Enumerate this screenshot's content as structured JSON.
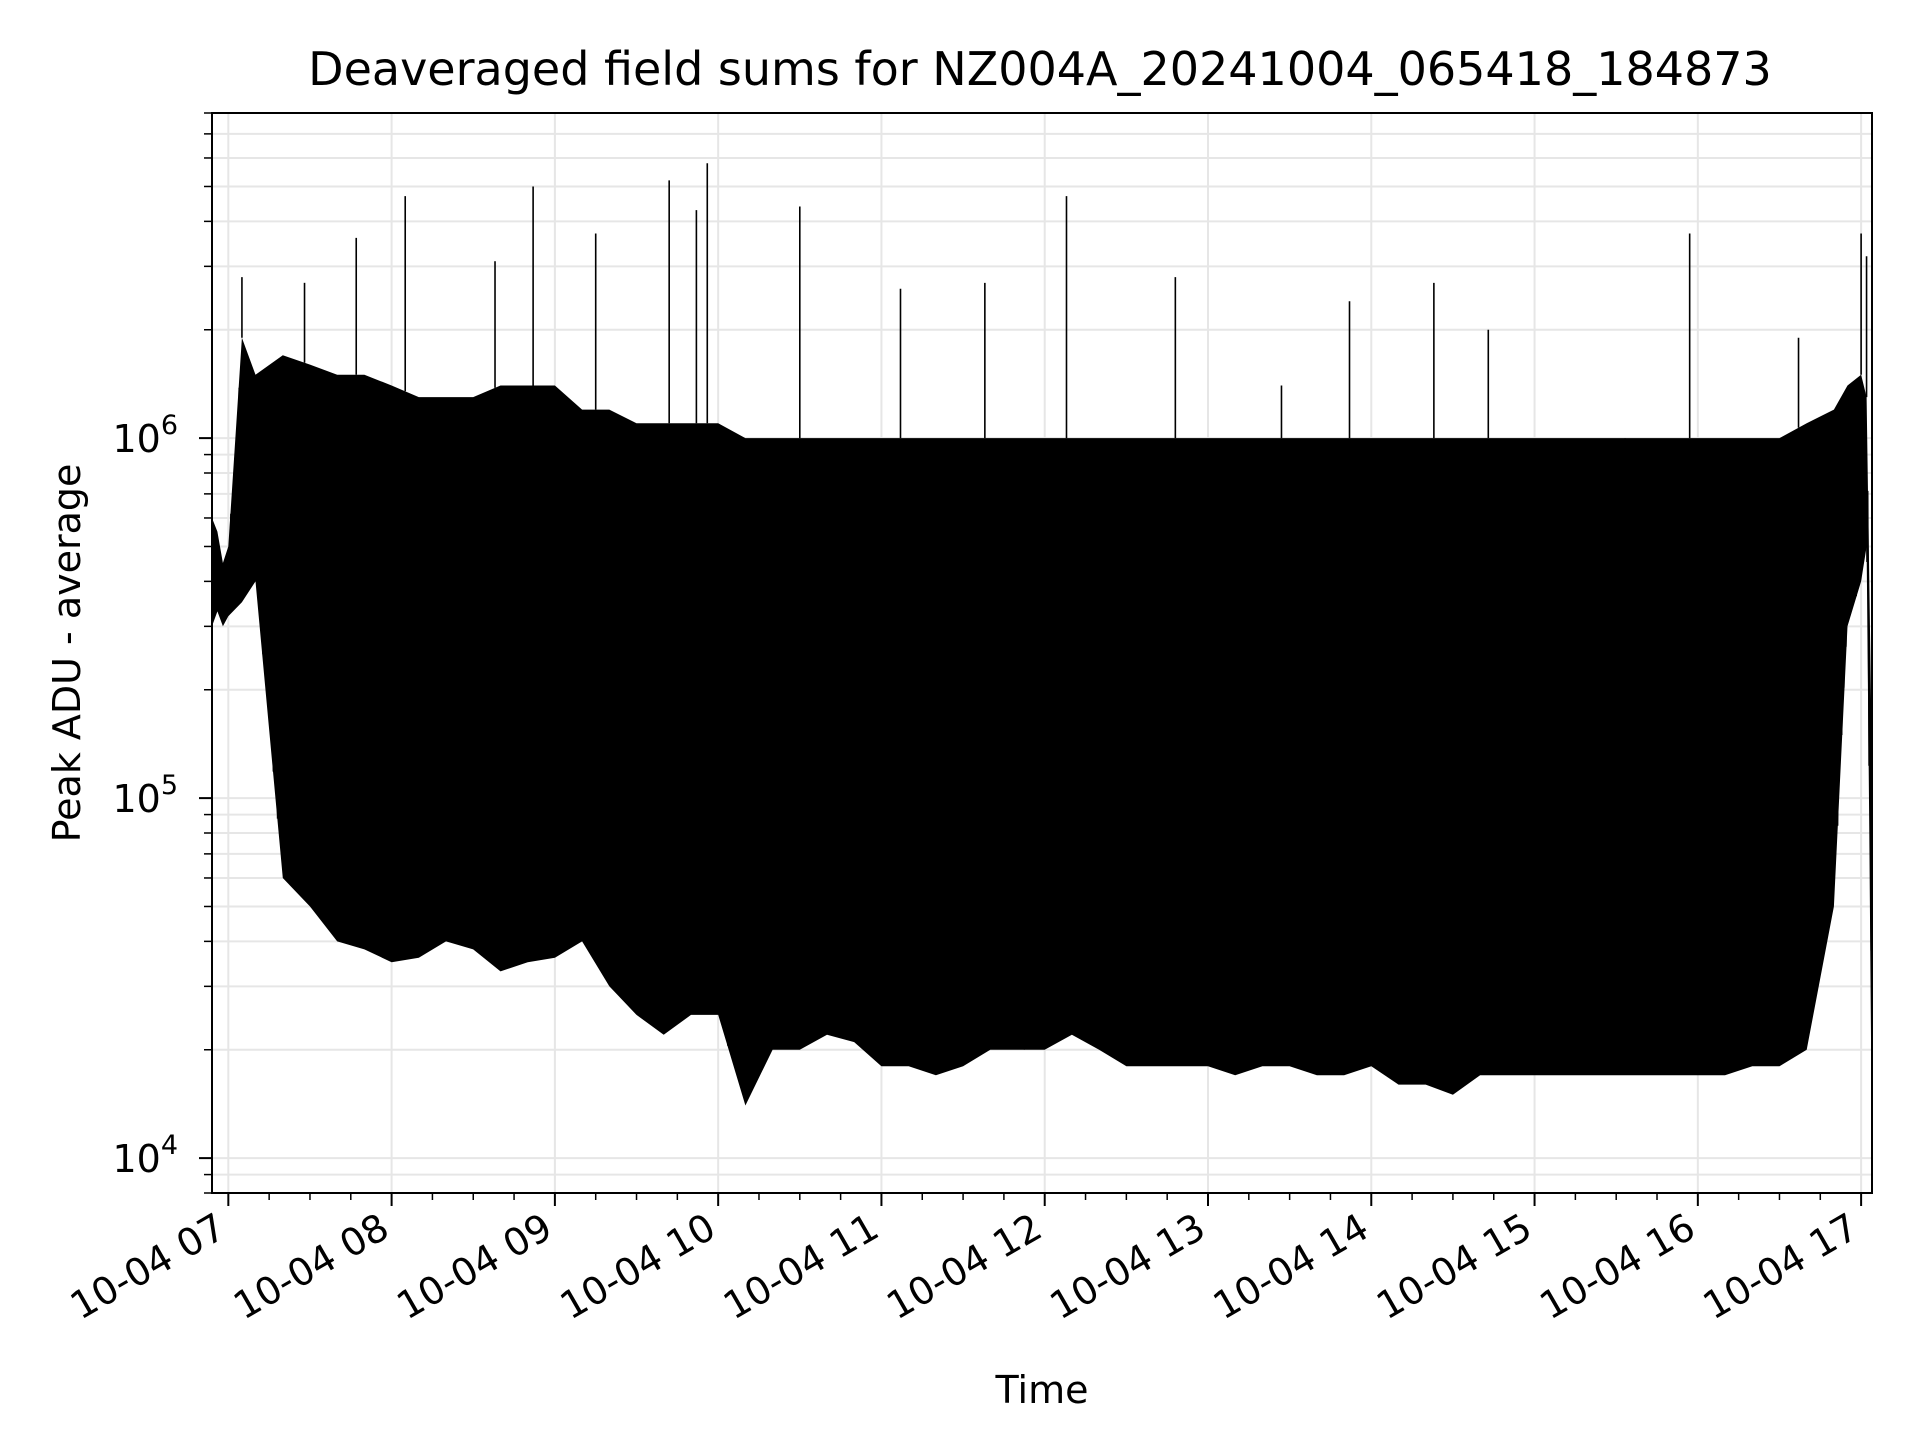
{
  "chart_data": {
    "type": "line",
    "title": "Deaveraged field sums for NZ004A_20241004_065418_184873",
    "xlabel": "Time",
    "ylabel": "Peak ADU - average",
    "yscale": "log",
    "ylim": [
      8000,
      8000000
    ],
    "xlim": [
      "2024-10-04 06:54",
      "2024-10-04 17:04"
    ],
    "xticks": [
      {
        "time": "2024-10-04 07:00",
        "label": "10-04 07"
      },
      {
        "time": "2024-10-04 08:00",
        "label": "10-04 08"
      },
      {
        "time": "2024-10-04 09:00",
        "label": "10-04 09"
      },
      {
        "time": "2024-10-04 10:00",
        "label": "10-04 10"
      },
      {
        "time": "2024-10-04 11:00",
        "label": "10-04 11"
      },
      {
        "time": "2024-10-04 12:00",
        "label": "10-04 12"
      },
      {
        "time": "2024-10-04 13:00",
        "label": "10-04 13"
      },
      {
        "time": "2024-10-04 14:00",
        "label": "10-04 14"
      },
      {
        "time": "2024-10-04 15:00",
        "label": "10-04 15"
      },
      {
        "time": "2024-10-04 16:00",
        "label": "10-04 16"
      },
      {
        "time": "2024-10-04 17:00",
        "label": "10-04 17"
      }
    ],
    "yticks": [
      {
        "value": 10000,
        "base": "10",
        "exp": "4"
      },
      {
        "value": 100000,
        "base": "10",
        "exp": "5"
      },
      {
        "value": 1000000,
        "base": "10",
        "exp": "6"
      }
    ],
    "grid": true,
    "legend": "none",
    "colors": {
      "line": "#000000",
      "grid": "#e6e6e6",
      "axes": "#000000"
    },
    "series": [
      {
        "x": [
          "2024-10-04 06:54",
          "2024-10-04 06:56",
          "2024-10-04 06:58",
          "2024-10-04 07:00",
          "2024-10-04 07:05",
          "2024-10-04 07:10",
          "2024-10-04 07:20",
          "2024-10-04 07:30",
          "2024-10-04 07:40",
          "2024-10-04 07:50",
          "2024-10-04 08:00",
          "2024-10-04 08:10",
          "2024-10-04 08:20",
          "2024-10-04 08:30",
          "2024-10-04 08:40",
          "2024-10-04 08:50",
          "2024-10-04 09:00",
          "2024-10-04 09:10",
          "2024-10-04 09:20",
          "2024-10-04 09:30",
          "2024-10-04 09:40",
          "2024-10-04 09:50",
          "2024-10-04 10:00",
          "2024-10-04 10:10",
          "2024-10-04 10:20",
          "2024-10-04 10:30",
          "2024-10-04 10:40",
          "2024-10-04 10:50",
          "2024-10-04 11:00",
          "2024-10-04 11:10",
          "2024-10-04 11:20",
          "2024-10-04 11:30",
          "2024-10-04 11:40",
          "2024-10-04 11:50",
          "2024-10-04 12:00",
          "2024-10-04 12:10",
          "2024-10-04 12:20",
          "2024-10-04 12:30",
          "2024-10-04 12:40",
          "2024-10-04 12:50",
          "2024-10-04 13:00",
          "2024-10-04 13:10",
          "2024-10-04 13:20",
          "2024-10-04 13:30",
          "2024-10-04 13:40",
          "2024-10-04 13:50",
          "2024-10-04 14:00",
          "2024-10-04 14:10",
          "2024-10-04 14:20",
          "2024-10-04 14:30",
          "2024-10-04 14:40",
          "2024-10-04 14:50",
          "2024-10-04 15:00",
          "2024-10-04 15:10",
          "2024-10-04 15:20",
          "2024-10-04 15:30",
          "2024-10-04 15:40",
          "2024-10-04 15:50",
          "2024-10-04 16:00",
          "2024-10-04 16:10",
          "2024-10-04 16:20",
          "2024-10-04 16:30",
          "2024-10-04 16:40",
          "2024-10-04 16:50",
          "2024-10-04 16:55",
          "2024-10-04 17:00",
          "2024-10-04 17:02",
          "2024-10-04 17:03",
          "2024-10-04 17:04"
        ],
        "upper": [
          600000,
          550000,
          450000,
          500000,
          1900000,
          1500000,
          1700000,
          1600000,
          1500000,
          1500000,
          1400000,
          1300000,
          1300000,
          1300000,
          1400000,
          1400000,
          1400000,
          1200000,
          1200000,
          1100000,
          1100000,
          1100000,
          1100000,
          1000000,
          1000000,
          1000000,
          1000000,
          1000000,
          1000000,
          1000000,
          1000000,
          1000000,
          1000000,
          1000000,
          1000000,
          1000000,
          1000000,
          1000000,
          1000000,
          1000000,
          1000000,
          1000000,
          1000000,
          1000000,
          1000000,
          1000000,
          1000000,
          1000000,
          1000000,
          1000000,
          1000000,
          1000000,
          1000000,
          1000000,
          1000000,
          1000000,
          1000000,
          1000000,
          1000000,
          1000000,
          1000000,
          1000000,
          1100000,
          1200000,
          1400000,
          1500000,
          1300000,
          400000,
          120000
        ],
        "lower": [
          300000,
          330000,
          300000,
          320000,
          350000,
          400000,
          60000,
          50000,
          40000,
          38000,
          35000,
          36000,
          40000,
          38000,
          33000,
          35000,
          36000,
          40000,
          30000,
          25000,
          22000,
          25000,
          25000,
          14000,
          20000,
          20000,
          22000,
          21000,
          18000,
          18000,
          17000,
          18000,
          20000,
          20000,
          20000,
          22000,
          20000,
          18000,
          18000,
          18000,
          18000,
          17000,
          18000,
          18000,
          17000,
          17000,
          18000,
          16000,
          16000,
          15000,
          17000,
          17000,
          17000,
          17000,
          17000,
          17000,
          17000,
          17000,
          17000,
          17000,
          18000,
          18000,
          20000,
          50000,
          300000,
          400000,
          500000,
          80000,
          10000
        ],
        "spikes": [
          {
            "x": "2024-10-04 07:05",
            "y": 2800000
          },
          {
            "x": "2024-10-04 07:28",
            "y": 2700000
          },
          {
            "x": "2024-10-04 07:47",
            "y": 3600000
          },
          {
            "x": "2024-10-04 08:05",
            "y": 4700000
          },
          {
            "x": "2024-10-04 08:38",
            "y": 3100000
          },
          {
            "x": "2024-10-04 08:52",
            "y": 5000000
          },
          {
            "x": "2024-10-04 09:15",
            "y": 3700000
          },
          {
            "x": "2024-10-04 09:42",
            "y": 5200000
          },
          {
            "x": "2024-10-04 09:52",
            "y": 4300000
          },
          {
            "x": "2024-10-04 09:56",
            "y": 5800000
          },
          {
            "x": "2024-10-04 10:30",
            "y": 4400000
          },
          {
            "x": "2024-10-04 11:07",
            "y": 2600000
          },
          {
            "x": "2024-10-04 11:38",
            "y": 2700000
          },
          {
            "x": "2024-10-04 12:08",
            "y": 4700000
          },
          {
            "x": "2024-10-04 12:48",
            "y": 2800000
          },
          {
            "x": "2024-10-04 13:27",
            "y": 1400000
          },
          {
            "x": "2024-10-04 13:52",
            "y": 2400000
          },
          {
            "x": "2024-10-04 14:23",
            "y": 2700000
          },
          {
            "x": "2024-10-04 14:43",
            "y": 2000000
          },
          {
            "x": "2024-10-04 15:57",
            "y": 3700000
          },
          {
            "x": "2024-10-04 16:37",
            "y": 1900000
          },
          {
            "x": "2024-10-04 17:00",
            "y": 3700000
          },
          {
            "x": "2024-10-04 17:02",
            "y": 3200000
          }
        ]
      }
    ]
  }
}
